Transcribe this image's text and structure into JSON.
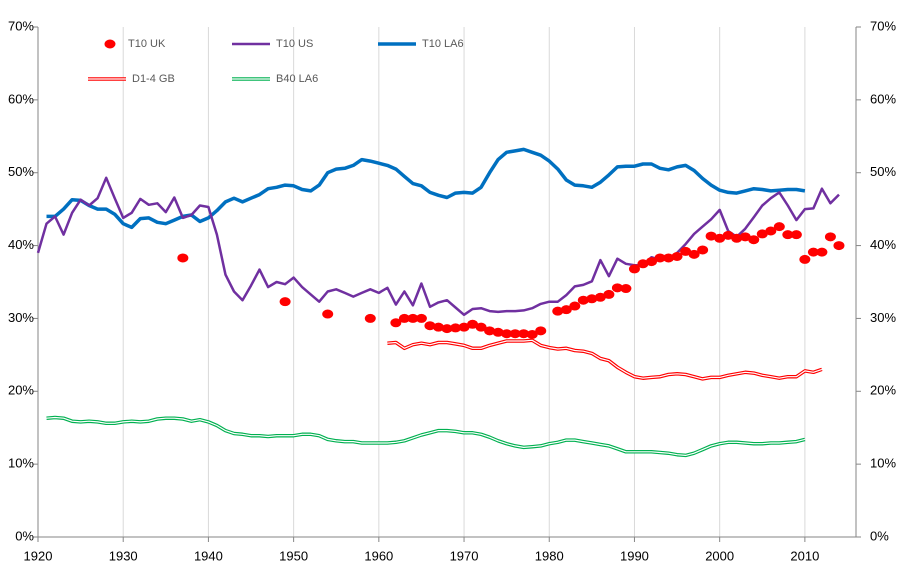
{
  "chart_data": {
    "type": "line",
    "x": [
      1920,
      1921,
      1922,
      1923,
      1924,
      1925,
      1926,
      1927,
      1928,
      1929,
      1930,
      1931,
      1932,
      1933,
      1934,
      1935,
      1936,
      1937,
      1938,
      1939,
      1940,
      1941,
      1942,
      1943,
      1944,
      1945,
      1946,
      1947,
      1948,
      1949,
      1950,
      1951,
      1952,
      1953,
      1954,
      1955,
      1956,
      1957,
      1958,
      1959,
      1960,
      1961,
      1962,
      1963,
      1964,
      1965,
      1966,
      1967,
      1968,
      1969,
      1970,
      1971,
      1972,
      1973,
      1974,
      1975,
      1976,
      1977,
      1978,
      1979,
      1980,
      1981,
      1982,
      1983,
      1984,
      1985,
      1986,
      1987,
      1988,
      1989,
      1990,
      1991,
      1992,
      1993,
      1994,
      1995,
      1996,
      1997,
      1998,
      1999,
      2000,
      2001,
      2002,
      2003,
      2004,
      2005,
      2006,
      2007,
      2008,
      2009,
      2010,
      2011,
      2012,
      2013,
      2014
    ],
    "series": [
      {
        "name": "T10 UK",
        "color": "#ff0000",
        "style": "dots",
        "values": [
          null,
          null,
          null,
          null,
          null,
          null,
          null,
          null,
          null,
          null,
          null,
          null,
          null,
          null,
          null,
          null,
          null,
          38.3,
          null,
          null,
          null,
          null,
          null,
          null,
          null,
          null,
          null,
          null,
          null,
          32.3,
          null,
          null,
          null,
          null,
          30.6,
          null,
          null,
          null,
          null,
          30,
          null,
          null,
          29.4,
          30,
          30,
          30,
          29,
          28.8,
          28.6,
          28.7,
          28.8,
          29.2,
          28.8,
          28.3,
          28.1,
          27.9,
          27.9,
          27.9,
          27.8,
          28.3,
          null,
          31,
          31.2,
          31.7,
          32.5,
          32.7,
          32.9,
          33.3,
          34.2,
          34.1,
          36.8,
          37.5,
          37.8,
          38.3,
          38.3,
          38.5,
          39.2,
          38.8,
          39.4,
          41.3,
          41,
          41.4,
          41,
          41.2,
          40.8,
          41.6,
          42,
          42.6,
          41.5,
          41.5,
          38.1,
          39.1,
          39.1,
          41.2,
          40
        ]
      },
      {
        "name": "T10 US",
        "color": "#7030a0",
        "style": "line",
        "values": [
          39,
          43,
          44,
          41.5,
          44.5,
          46.3,
          45.5,
          46.5,
          49.3,
          46.5,
          43.8,
          44.5,
          46.4,
          45.6,
          45.8,
          44.6,
          46.6,
          43.8,
          44.2,
          45.5,
          45.3,
          41.5,
          36,
          33.7,
          32.5,
          34.5,
          36.7,
          34.3,
          35,
          34.7,
          35.6,
          34.3,
          33.3,
          32.3,
          33.7,
          34,
          33.5,
          33,
          33.5,
          34,
          33.5,
          34.2,
          31.9,
          33.7,
          31.8,
          34.8,
          31.6,
          32.2,
          32.5,
          31.5,
          30.5,
          31.3,
          31.4,
          31,
          30.9,
          31,
          31,
          31.1,
          31.4,
          32,
          32.3,
          32.3,
          33.2,
          34.4,
          34.6,
          35.1,
          38,
          35.8,
          38.2,
          37.5,
          37.3,
          37.3,
          38.4,
          38,
          38.2,
          39,
          40.2,
          41.6,
          42.6,
          43.6,
          44.9,
          42,
          41.2,
          42.3,
          43.9,
          45.5,
          46.5,
          47.3,
          45.5,
          43.5,
          45,
          45.1,
          47.8,
          45.8,
          47
        ]
      },
      {
        "name": "T10 LA6",
        "color": "#0070c0",
        "style": "thick-line",
        "values": [
          null,
          44,
          44,
          45,
          46.3,
          46.2,
          45.5,
          45,
          45,
          44.3,
          43,
          42.5,
          43.7,
          43.8,
          43.2,
          43,
          43.5,
          44,
          44.2,
          43.3,
          43.8,
          44.8,
          46,
          46.5,
          46,
          46.5,
          47,
          47.8,
          48,
          48.3,
          48.2,
          47.7,
          47.5,
          48.3,
          50,
          50.5,
          50.6,
          51,
          51.8,
          51.6,
          51.3,
          51,
          50.5,
          49.5,
          48.5,
          48.2,
          47.3,
          46.9,
          46.6,
          47.2,
          47.3,
          47.2,
          48,
          50,
          51.8,
          52.8,
          53,
          53.2,
          52.8,
          52.4,
          51.6,
          50.5,
          49,
          48.3,
          48.2,
          48,
          48.7,
          49.7,
          50.8,
          50.9,
          50.9,
          51.2,
          51.2,
          50.6,
          50.4,
          50.8,
          51,
          50.3,
          49.2,
          48.3,
          47.6,
          47.3,
          47.2,
          47.5,
          47.8,
          47.7,
          47.5,
          47.6,
          47.7,
          47.7,
          47.5,
          null,
          null,
          null,
          null
        ]
      },
      {
        "name": "D1-4 GB",
        "color": "#ff0000",
        "style": "double",
        "values": [
          null,
          null,
          null,
          null,
          null,
          null,
          null,
          null,
          null,
          null,
          null,
          null,
          null,
          null,
          null,
          null,
          null,
          null,
          null,
          null,
          null,
          null,
          null,
          null,
          null,
          null,
          null,
          null,
          null,
          null,
          null,
          null,
          null,
          null,
          null,
          null,
          null,
          null,
          null,
          null,
          null,
          26.6,
          26.7,
          25.9,
          26.4,
          26.6,
          26.4,
          26.7,
          26.7,
          26.5,
          26.3,
          25.9,
          25.9,
          26.3,
          26.6,
          26.9,
          26.9,
          26.9,
          27,
          26.3,
          26,
          25.8,
          25.9,
          25.6,
          25.5,
          25.2,
          24.5,
          24.2,
          23.3,
          22.6,
          22,
          21.8,
          21.9,
          22,
          22.3,
          22.4,
          22.3,
          22,
          21.7,
          21.9,
          21.9,
          22.2,
          22.4,
          22.6,
          22.5,
          22.2,
          22,
          21.8,
          22,
          22,
          22.8,
          22.6,
          23,
          null,
          null
        ]
      },
      {
        "name": "B40 LA6",
        "color": "#00b050",
        "style": "double",
        "values": [
          null,
          16.3,
          16.4,
          16.3,
          15.9,
          15.8,
          15.9,
          15.8,
          15.6,
          15.6,
          15.8,
          15.9,
          15.8,
          15.9,
          16.2,
          16.3,
          16.3,
          16.2,
          15.9,
          16.1,
          15.8,
          15.3,
          14.6,
          14.2,
          14.1,
          13.9,
          13.9,
          13.8,
          13.9,
          13.9,
          13.9,
          14.1,
          14.1,
          13.9,
          13.4,
          13.2,
          13.1,
          13.1,
          12.9,
          12.9,
          12.9,
          12.9,
          13,
          13.2,
          13.6,
          14,
          14.3,
          14.6,
          14.6,
          14.5,
          14.3,
          14.3,
          14.1,
          13.7,
          13.2,
          12.8,
          12.5,
          12.3,
          12.4,
          12.5,
          12.8,
          13,
          13.3,
          13.3,
          13.1,
          12.9,
          12.7,
          12.5,
          12.1,
          11.7,
          11.7,
          11.7,
          11.7,
          11.6,
          11.5,
          11.3,
          11.2,
          11.5,
          12,
          12.5,
          12.8,
          13,
          13,
          12.9,
          12.8,
          12.8,
          12.9,
          12.9,
          13,
          13.1,
          13.4,
          null,
          null,
          null,
          null
        ]
      }
    ],
    "xlim": [
      1920,
      2016
    ],
    "xticks": [
      1920,
      1930,
      1940,
      1950,
      1960,
      1970,
      1980,
      1990,
      2000,
      2010
    ],
    "ylim": [
      0,
      70
    ],
    "yticks": [
      {
        "value": 0,
        "label": "0%"
      },
      {
        "value": 10,
        "label": "10%"
      },
      {
        "value": 20,
        "label": "20%"
      },
      {
        "value": 30,
        "label": "30%"
      },
      {
        "value": 40,
        "label": "40%"
      },
      {
        "value": 50,
        "label": "50%"
      },
      {
        "value": 60,
        "label": "60%"
      },
      {
        "value": 70,
        "label": "70%"
      }
    ],
    "y2lim": [
      0,
      70
    ],
    "y2ticks": [
      {
        "value": 0,
        "label": "0%"
      },
      {
        "value": 10,
        "label": "10%"
      },
      {
        "value": 20,
        "label": "20%"
      },
      {
        "value": 30,
        "label": "30%"
      },
      {
        "value": 40,
        "label": "40%"
      },
      {
        "value": 50,
        "label": "50%"
      },
      {
        "value": 60,
        "label": "60%"
      },
      {
        "value": 70,
        "label": "70%"
      }
    ],
    "grid": "x"
  }
}
